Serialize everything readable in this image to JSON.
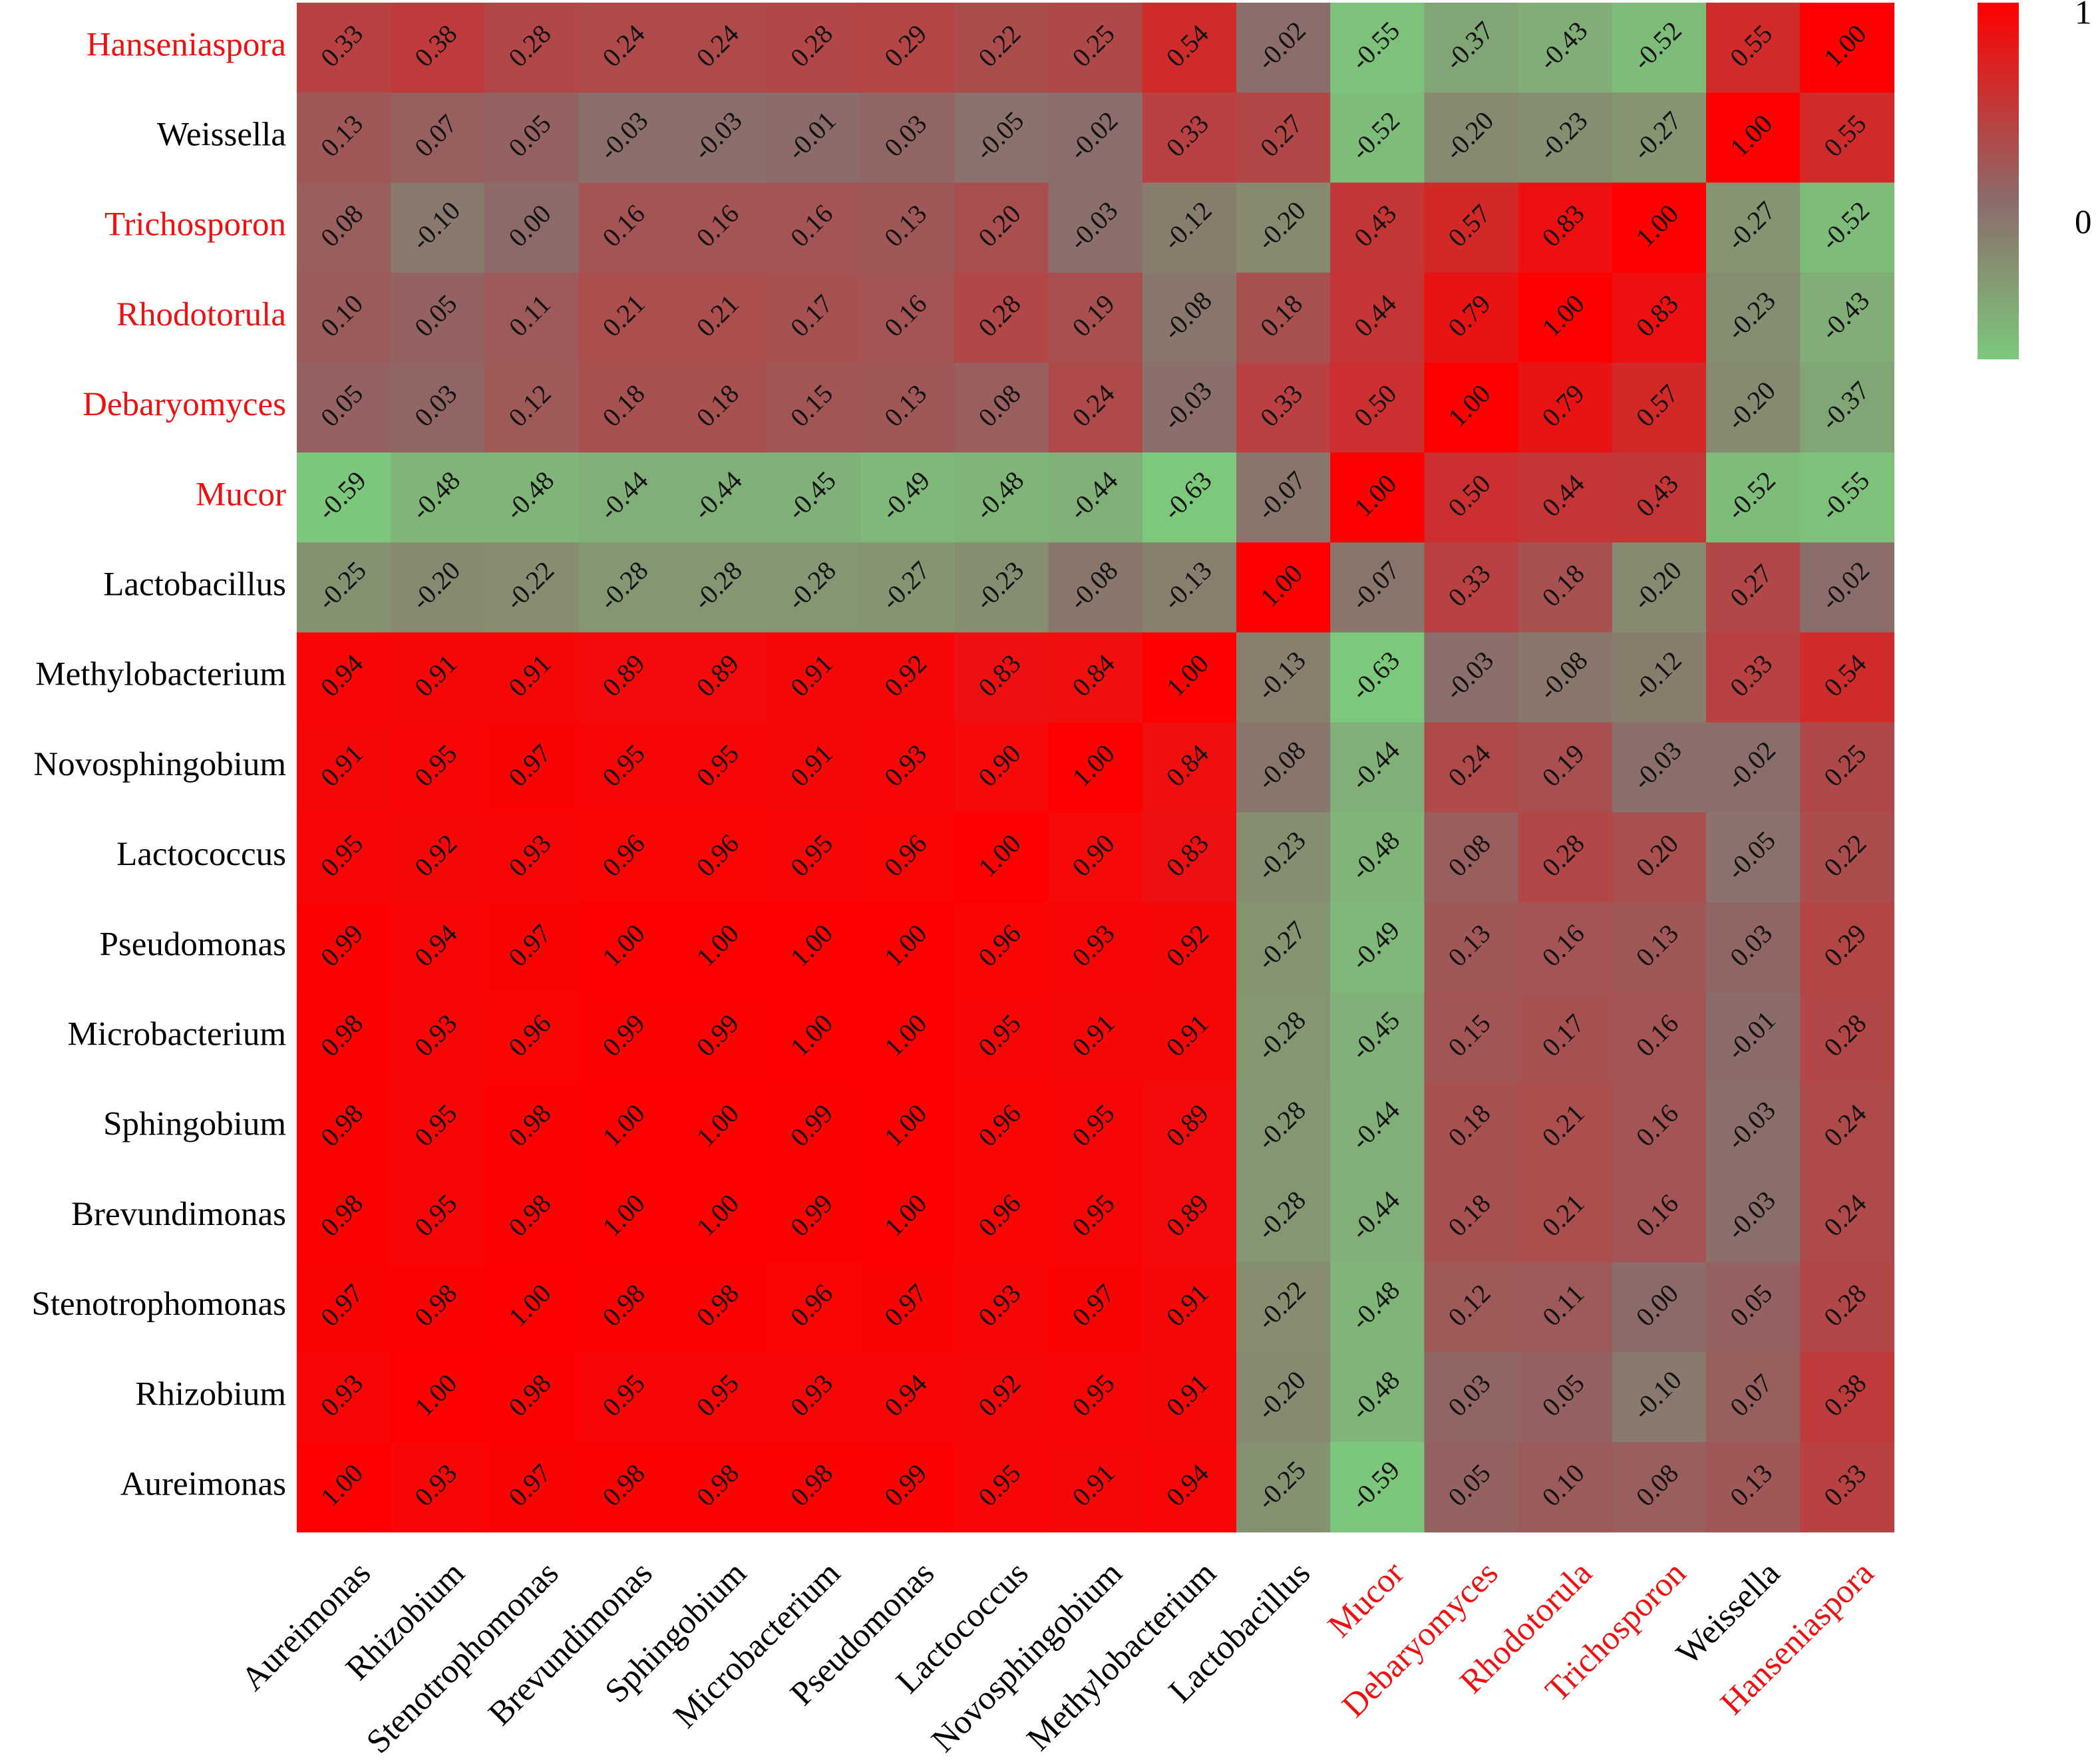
{
  "chart_data": {
    "type": "heatmap",
    "title": "",
    "xlabel": "",
    "ylabel": "",
    "x_categories": [
      "Aureimonas",
      "Rhizobium",
      "Stenotrophomonas",
      "Brevundimonas",
      "Sphingobium",
      "Microbacterium",
      "Pseudomonas",
      "Lactococcus",
      "Novosphingobium",
      "Methylobacterium",
      "Lactobacillus",
      "Mucor",
      "Debaryomyces",
      "Rhodotorula",
      "Trichosporon",
      "Weissella",
      "Hanseniaspora"
    ],
    "y_categories": [
      "Hanseniaspora",
      "Weissella",
      "Trichosporon",
      "Rhodotorula",
      "Debaryomyces",
      "Mucor",
      "Lactobacillus",
      "Methylobacterium",
      "Novosphingobium",
      "Lactococcus",
      "Pseudomonas",
      "Microbacterium",
      "Sphingobium",
      "Brevundimonas",
      "Stenotrophomonas",
      "Rhizobium",
      "Aureimonas"
    ],
    "highlighted_labels": [
      "Hanseniaspora",
      "Trichosporon",
      "Rhodotorula",
      "Debaryomyces",
      "Mucor"
    ],
    "label_colors": {
      "highlight": "#ee1111",
      "normal": "#000000"
    },
    "values": [
      [
        "0.33",
        "0.38",
        "0.28",
        "0.24",
        "0.24",
        "0.28",
        "0.29",
        "0.22",
        "0.25",
        "0.54",
        "-0.02",
        "-0.55",
        "-0.37",
        "-0.43",
        "-0.52",
        "0.55",
        "1.00"
      ],
      [
        "0.13",
        "0.07",
        "0.05",
        "-0.03",
        "-0.03",
        "-0.01",
        "0.03",
        "-0.05",
        "-0.02",
        "0.33",
        "0.27",
        "-0.52",
        "-0.20",
        "-0.23",
        "-0.27",
        "1.00",
        "0.55"
      ],
      [
        "0.08",
        "-0.10",
        "0.00",
        "0.16",
        "0.16",
        "0.16",
        "0.13",
        "0.20",
        "-0.03",
        "-0.12",
        "-0.20",
        "0.43",
        "0.57",
        "0.83",
        "1.00",
        "-0.27",
        "-0.52"
      ],
      [
        "0.10",
        "0.05",
        "0.11",
        "0.21",
        "0.21",
        "0.17",
        "0.16",
        "0.28",
        "0.19",
        "-0.08",
        "0.18",
        "0.44",
        "0.79",
        "1.00",
        "0.83",
        "-0.23",
        "-0.43"
      ],
      [
        "0.05",
        "0.03",
        "0.12",
        "0.18",
        "0.18",
        "0.15",
        "0.13",
        "0.08",
        "0.24",
        "-0.03",
        "0.33",
        "0.50",
        "1.00",
        "0.79",
        "0.57",
        "-0.20",
        "-0.37"
      ],
      [
        "-0.59",
        "-0.48",
        "-0.48",
        "-0.44",
        "-0.44",
        "-0.45",
        "-0.49",
        "-0.48",
        "-0.44",
        "-0.63",
        "-0.07",
        "1.00",
        "0.50",
        "0.44",
        "0.43",
        "-0.52",
        "-0.55"
      ],
      [
        "-0.25",
        "-0.20",
        "-0.22",
        "-0.28",
        "-0.28",
        "-0.28",
        "-0.27",
        "-0.23",
        "-0.08",
        "-0.13",
        "1.00",
        "-0.07",
        "0.33",
        "0.18",
        "-0.20",
        "0.27",
        "-0.02"
      ],
      [
        "0.94",
        "0.91",
        "0.91",
        "0.89",
        "0.89",
        "0.91",
        "0.92",
        "0.83",
        "0.84",
        "1.00",
        "-0.13",
        "-0.63",
        "-0.03",
        "-0.08",
        "-0.12",
        "0.33",
        "0.54"
      ],
      [
        "0.91",
        "0.95",
        "0.97",
        "0.95",
        "0.95",
        "0.91",
        "0.93",
        "0.90",
        "1.00",
        "0.84",
        "-0.08",
        "-0.44",
        "0.24",
        "0.19",
        "-0.03",
        "-0.02",
        "0.25"
      ],
      [
        "0.95",
        "0.92",
        "0.93",
        "0.96",
        "0.96",
        "0.95",
        "0.96",
        "1.00",
        "0.90",
        "0.83",
        "-0.23",
        "-0.48",
        "0.08",
        "0.28",
        "0.20",
        "-0.05",
        "0.22"
      ],
      [
        "0.99",
        "0.94",
        "0.97",
        "1.00",
        "1.00",
        "1.00",
        "1.00",
        "0.96",
        "0.93",
        "0.92",
        "-0.27",
        "-0.49",
        "0.13",
        "0.16",
        "0.13",
        "0.03",
        "0.29"
      ],
      [
        "0.98",
        "0.93",
        "0.96",
        "0.99",
        "0.99",
        "1.00",
        "1.00",
        "0.95",
        "0.91",
        "0.91",
        "-0.28",
        "-0.45",
        "0.15",
        "0.17",
        "0.16",
        "-0.01",
        "0.28"
      ],
      [
        "0.98",
        "0.95",
        "0.98",
        "1.00",
        "1.00",
        "0.99",
        "1.00",
        "0.96",
        "0.95",
        "0.89",
        "-0.28",
        "-0.44",
        "0.18",
        "0.21",
        "0.16",
        "-0.03",
        "0.24"
      ],
      [
        "0.98",
        "0.95",
        "0.98",
        "1.00",
        "1.00",
        "0.99",
        "1.00",
        "0.96",
        "0.95",
        "0.89",
        "-0.28",
        "-0.44",
        "0.18",
        "0.21",
        "0.16",
        "-0.03",
        "0.24"
      ],
      [
        "0.97",
        "0.98",
        "1.00",
        "0.98",
        "0.98",
        "0.96",
        "0.97",
        "0.93",
        "0.97",
        "0.91",
        "-0.22",
        "-0.48",
        "0.12",
        "0.11",
        "0.00",
        "0.05",
        "0.28"
      ],
      [
        "0.93",
        "1.00",
        "0.98",
        "0.95",
        "0.95",
        "0.93",
        "0.94",
        "0.92",
        "0.95",
        "0.91",
        "-0.20",
        "-0.48",
        "0.03",
        "0.05",
        "-0.10",
        "0.07",
        "0.38"
      ],
      [
        "1.00",
        "0.93",
        "0.97",
        "0.98",
        "0.98",
        "0.98",
        "0.99",
        "0.95",
        "0.91",
        "0.94",
        "-0.25",
        "-0.59",
        "0.05",
        "0.10",
        "0.08",
        "0.13",
        "0.33"
      ]
    ],
    "value_range": [
      -0.6,
      1
    ],
    "colorscale": {
      "low": "#7cc97c",
      "mid": "#8c6a6a",
      "high": "#ff0000"
    },
    "colorbar": {
      "tick_labels": [
        "1",
        "0"
      ],
      "tick_values": [
        1,
        0
      ],
      "placement": "right"
    },
    "grid": false
  }
}
